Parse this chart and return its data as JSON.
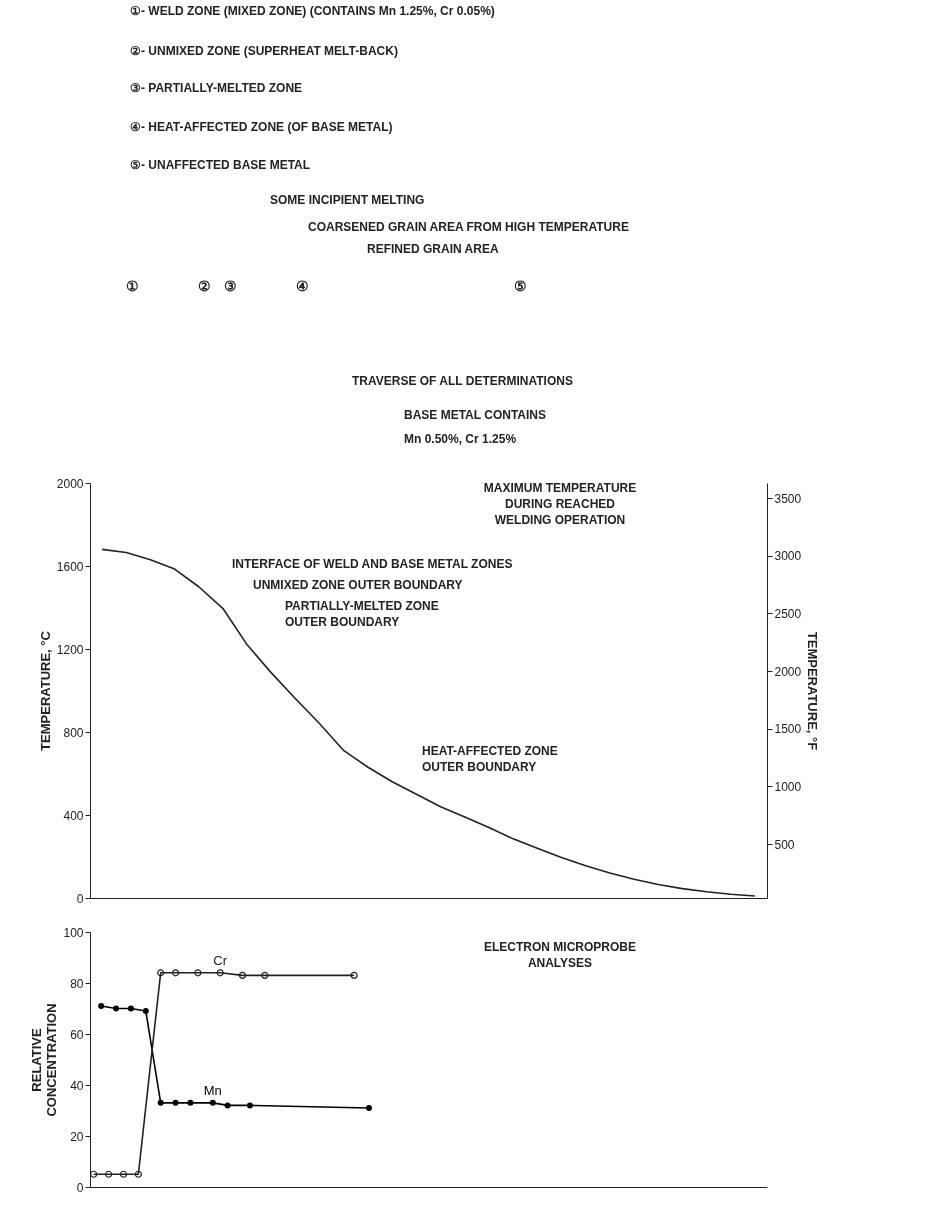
{
  "chart_data": [
    {
      "type": "line",
      "categories": [
        null,
        null,
        null,
        null,
        null,
        null,
        null,
        null,
        null,
        null,
        null,
        null,
        null,
        null,
        null,
        null,
        null,
        null,
        null,
        null,
        null,
        null,
        null,
        null,
        null,
        null,
        null,
        null
      ],
      "series": [
        {
          "color": "#222222",
          "values": [
            1680,
            1665,
            1630,
            1585,
            1500,
            1395,
            1220,
            1085,
            960,
            840,
            710,
            630,
            560,
            500,
            440,
            390,
            340,
            285,
            240,
            195,
            155,
            120,
            90,
            65,
            45,
            30,
            18,
            10
          ]
        }
      ],
      "ylabel": "TEMPERATURE, °C",
      "y2label": "TEMPERATURE, °F",
      "ylim": [
        0,
        2000
      ],
      "yticks": [
        0,
        400,
        800,
        1200,
        1600,
        2000
      ],
      "y2lim": [
        32,
        3632
      ],
      "y2ticks": [
        500,
        1000,
        1500,
        2000,
        2500,
        3000,
        3500
      ],
      "annotations": [
        "①- WELD ZONE (MIXED ZONE) (CONTAINS Mn 1.25%, Cr 0.05%)",
        "②- UNMIXED ZONE (SUPERHEAT MELT-BACK)",
        "③- PARTIALLY-MELTED ZONE",
        "④- HEAT-AFFECTED ZONE (OF BASE METAL)",
        "⑤- UNAFFECTED BASE METAL",
        "SOME INCIPIENT MELTING",
        "COARSENED GRAIN AREA FROM HIGH TEMPERATURE",
        "REFINED GRAIN AREA",
        "①",
        "②",
        "③",
        "④",
        "⑤",
        "TRAVERSE OF ALL DETERMINATIONS",
        "BASE METAL CONTAINS",
        "Mn 0.50%, Cr 1.25%",
        "MAXIMUM TEMPERATURE DURING REACHED WELDING OPERATION",
        "INTERFACE OF WELD AND BASE METAL ZONES",
        "UNMIXED ZONE OUTER BOUNDARY",
        "PARTIALLY-MELTED ZONE OUTER BOUNDARY",
        "HEAT-AFFECTED ZONE OUTER BOUNDARY"
      ]
    },
    {
      "type": "line",
      "marker": "circle",
      "categories": [
        null,
        null,
        null,
        null,
        null,
        null,
        null,
        null,
        null,
        null,
        null,
        null,
        null,
        null,
        null,
        null,
        null,
        null,
        null,
        null,
        null,
        null,
        null,
        null,
        null,
        null,
        null,
        null,
        null,
        null,
        null,
        null,
        null,
        null,
        null,
        null,
        null,
        null,
        null,
        null,
        null,
        null,
        null,
        null,
        null,
        null,
        null,
        null,
        null,
        null,
        null,
        null,
        null,
        null,
        null,
        null,
        null,
        null,
        null,
        null,
        null,
        null,
        null,
        null,
        null,
        null,
        null,
        null,
        null,
        null,
        null,
        null,
        null,
        null,
        null,
        null,
        null,
        null,
        null,
        null,
        null,
        null,
        null,
        null,
        null,
        null,
        null,
        null,
        null,
        null,
        null
      ],
      "series": [
        {
          "name": "Cr",
          "color": "#222222",
          "values": [
            5,
            null,
            5,
            null,
            5,
            null,
            5,
            null,
            null,
            84,
            null,
            84,
            null,
            null,
            84,
            null,
            null,
            84,
            null,
            null,
            83,
            null,
            null,
            83,
            null,
            null,
            null,
            null,
            null,
            null,
            null,
            null,
            null,
            null,
            null,
            83,
            null,
            null,
            null,
            null,
            null,
            null,
            null,
            null,
            null,
            null,
            null,
            null,
            null,
            null,
            null,
            null,
            null,
            null,
            null,
            null,
            null,
            null,
            null,
            null,
            null,
            null,
            null,
            null,
            null,
            null,
            null,
            null,
            null,
            null,
            null,
            null,
            null,
            null,
            null,
            null,
            null,
            null,
            null,
            null,
            null,
            null,
            null,
            null,
            null,
            null,
            null,
            null,
            null,
            null,
            null
          ]
        },
        {
          "name": "Mn",
          "color": "#000000",
          "values": [
            null,
            71,
            null,
            70,
            null,
            70,
            null,
            69,
            null,
            33,
            null,
            33,
            null,
            33,
            null,
            null,
            33,
            null,
            32,
            null,
            null,
            32,
            null,
            null,
            null,
            null,
            null,
            null,
            null,
            null,
            null,
            null,
            null,
            null,
            null,
            null,
            null,
            31,
            null,
            null,
            null,
            null,
            null,
            null,
            null,
            null,
            null,
            null,
            null,
            null,
            null,
            null,
            null,
            null,
            null,
            null,
            null,
            null,
            null,
            null,
            null,
            null,
            null,
            null,
            null,
            null,
            null,
            null,
            null,
            null,
            null,
            null,
            null,
            null,
            null,
            null,
            null,
            null,
            null,
            null,
            null,
            null,
            null,
            null,
            null,
            null,
            null,
            null,
            null,
            null,
            null
          ]
        }
      ],
      "ylabel": "RELATIVE CONCENTRATION",
      "ylim": [
        0,
        100
      ],
      "yticks": [
        0,
        20,
        40,
        60,
        80,
        100
      ],
      "annotations": [
        "ELECTRON MICROPROBE ANALYSES"
      ]
    }
  ]
}
